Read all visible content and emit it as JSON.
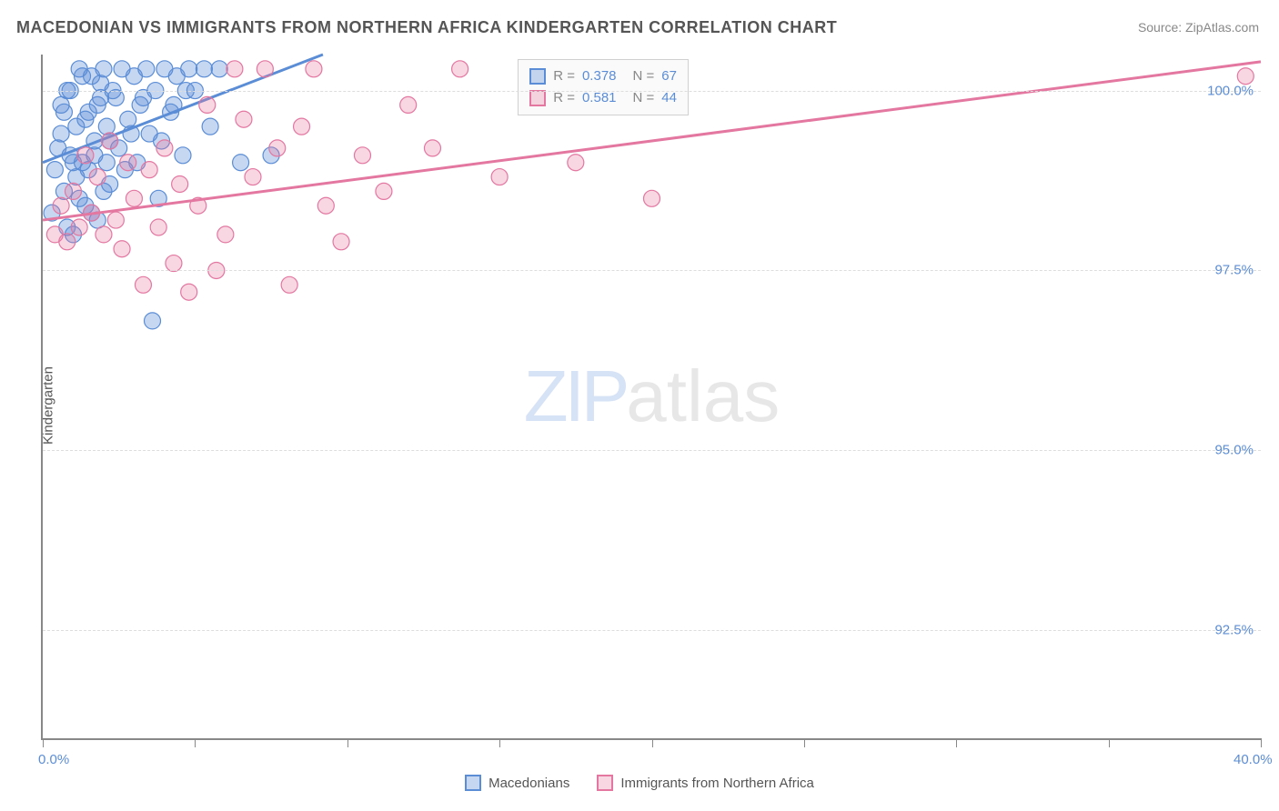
{
  "title": "MACEDONIAN VS IMMIGRANTS FROM NORTHERN AFRICA KINDERGARTEN CORRELATION CHART",
  "source": "Source: ZipAtlas.com",
  "ylabel": "Kindergarten",
  "watermark_zip": "ZIP",
  "watermark_atlas": "atlas",
  "chart": {
    "type": "scatter",
    "xlim": [
      0,
      40
    ],
    "ylim": [
      91,
      100.5
    ],
    "xtick_start": 0,
    "xtick_end": 40,
    "xtick_label_start": "0.0%",
    "xtick_label_end": "40.0%",
    "xtick_positions": [
      0,
      5,
      10,
      15,
      20,
      25,
      30,
      35,
      40
    ],
    "ytick_labels": [
      "92.5%",
      "95.0%",
      "97.5%",
      "100.0%"
    ],
    "ytick_values": [
      92.5,
      95.0,
      97.5,
      100.0
    ],
    "background_color": "#ffffff",
    "grid_color": "#dddddd",
    "series": [
      {
        "name": "Macedonians",
        "color_fill": "rgba(91,141,214,0.35)",
        "color_stroke": "#5b8dd6",
        "marker_radius": 9,
        "R": "0.378",
        "N": "67",
        "trend": {
          "x1": 0,
          "y1": 99.0,
          "x2": 9.2,
          "y2": 100.5,
          "width": 3
        },
        "points": [
          [
            0.3,
            98.3
          ],
          [
            0.5,
            99.2
          ],
          [
            0.6,
            99.8
          ],
          [
            0.7,
            98.6
          ],
          [
            0.8,
            100.0
          ],
          [
            0.9,
            99.1
          ],
          [
            1.0,
            98.0
          ],
          [
            1.1,
            99.5
          ],
          [
            1.2,
            100.3
          ],
          [
            1.3,
            99.0
          ],
          [
            1.4,
            98.4
          ],
          [
            1.5,
            99.7
          ],
          [
            1.6,
            100.2
          ],
          [
            1.7,
            99.3
          ],
          [
            1.8,
            98.2
          ],
          [
            1.9,
            99.9
          ],
          [
            2.0,
            100.3
          ],
          [
            2.1,
            99.5
          ],
          [
            2.2,
            98.7
          ],
          [
            2.3,
            100.0
          ],
          [
            2.5,
            99.2
          ],
          [
            2.6,
            100.3
          ],
          [
            2.7,
            98.9
          ],
          [
            2.8,
            99.6
          ],
          [
            3.0,
            100.2
          ],
          [
            3.1,
            99.0
          ],
          [
            3.2,
            99.8
          ],
          [
            3.4,
            100.3
          ],
          [
            3.5,
            99.4
          ],
          [
            3.7,
            100.0
          ],
          [
            3.8,
            98.5
          ],
          [
            4.0,
            100.3
          ],
          [
            4.2,
            99.7
          ],
          [
            4.4,
            100.2
          ],
          [
            4.6,
            99.1
          ],
          [
            4.8,
            100.3
          ],
          [
            5.0,
            100.0
          ],
          [
            5.3,
            100.3
          ],
          [
            5.5,
            99.5
          ],
          [
            3.6,
            96.8
          ],
          [
            0.4,
            98.9
          ],
          [
            0.6,
            99.4
          ],
          [
            0.8,
            98.1
          ],
          [
            1.0,
            99.0
          ],
          [
            1.2,
            98.5
          ],
          [
            1.4,
            99.6
          ],
          [
            1.6,
            98.3
          ],
          [
            1.8,
            99.8
          ],
          [
            2.0,
            98.6
          ],
          [
            2.2,
            99.3
          ],
          [
            0.7,
            99.7
          ],
          [
            0.9,
            100.0
          ],
          [
            1.1,
            98.8
          ],
          [
            1.3,
            100.2
          ],
          [
            1.5,
            98.9
          ],
          [
            1.7,
            99.1
          ],
          [
            1.9,
            100.1
          ],
          [
            2.1,
            99.0
          ],
          [
            2.4,
            99.9
          ],
          [
            2.9,
            99.4
          ],
          [
            3.3,
            99.9
          ],
          [
            3.9,
            99.3
          ],
          [
            4.3,
            99.8
          ],
          [
            4.7,
            100.0
          ],
          [
            5.8,
            100.3
          ],
          [
            6.5,
            99.0
          ],
          [
            7.5,
            99.1
          ]
        ]
      },
      {
        "name": "Immigrants from Northern Africa",
        "color_fill": "rgba(232,120,160,0.30)",
        "color_stroke": "#e377a0",
        "marker_radius": 9,
        "R": "0.581",
        "N": "44",
        "trend": {
          "x1": 0,
          "y1": 98.2,
          "x2": 40,
          "y2": 100.4,
          "width": 3
        },
        "points": [
          [
            0.4,
            98.0
          ],
          [
            0.6,
            98.4
          ],
          [
            0.8,
            97.9
          ],
          [
            1.0,
            98.6
          ],
          [
            1.2,
            98.1
          ],
          [
            1.4,
            99.1
          ],
          [
            1.6,
            98.3
          ],
          [
            1.8,
            98.8
          ],
          [
            2.0,
            98.0
          ],
          [
            2.2,
            99.3
          ],
          [
            2.4,
            98.2
          ],
          [
            2.6,
            97.8
          ],
          [
            2.8,
            99.0
          ],
          [
            3.0,
            98.5
          ],
          [
            3.3,
            97.3
          ],
          [
            3.5,
            98.9
          ],
          [
            3.8,
            98.1
          ],
          [
            4.0,
            99.2
          ],
          [
            4.3,
            97.6
          ],
          [
            4.5,
            98.7
          ],
          [
            4.8,
            97.2
          ],
          [
            5.1,
            98.4
          ],
          [
            5.4,
            99.8
          ],
          [
            5.7,
            97.5
          ],
          [
            6.0,
            98.0
          ],
          [
            6.3,
            100.3
          ],
          [
            6.6,
            99.6
          ],
          [
            6.9,
            98.8
          ],
          [
            7.3,
            100.3
          ],
          [
            7.7,
            99.2
          ],
          [
            8.1,
            97.3
          ],
          [
            8.5,
            99.5
          ],
          [
            8.9,
            100.3
          ],
          [
            9.3,
            98.4
          ],
          [
            9.8,
            97.9
          ],
          [
            10.5,
            99.1
          ],
          [
            11.2,
            98.6
          ],
          [
            12.0,
            99.8
          ],
          [
            12.8,
            99.2
          ],
          [
            13.7,
            100.3
          ],
          [
            15.0,
            98.8
          ],
          [
            17.5,
            99.0
          ],
          [
            20.0,
            98.5
          ],
          [
            39.5,
            100.2
          ]
        ]
      }
    ],
    "legend_top_labels": {
      "R": "R =",
      "N": "N ="
    },
    "legend_bottom": {
      "s1": "Macedonians",
      "s2": "Immigrants from Northern Africa"
    }
  }
}
